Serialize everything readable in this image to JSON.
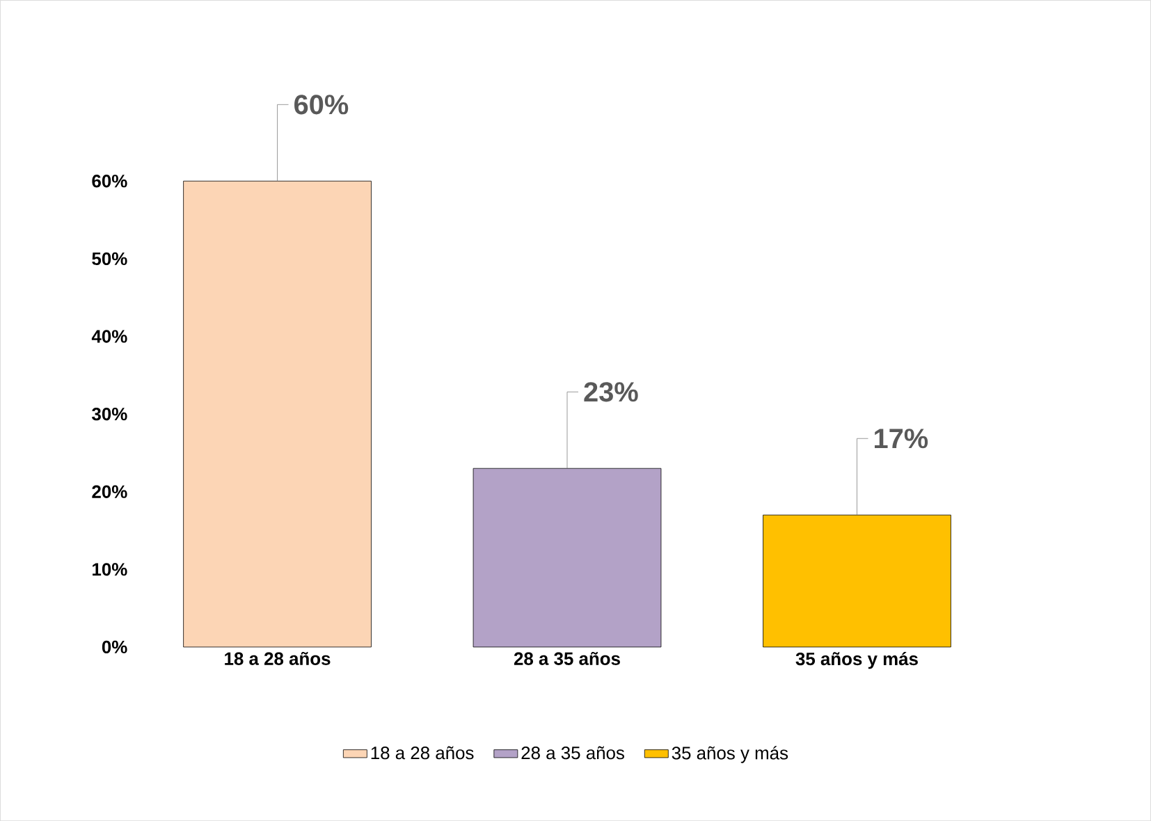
{
  "chart_data": {
    "type": "bar",
    "categories": [
      "18 a 28 años",
      "28 a 35 años",
      "35 años y más"
    ],
    "series": [
      {
        "name": "18 a 28 años",
        "color": "#fcd5b5",
        "values": [
          60,
          null,
          null
        ],
        "value_labels": [
          "60%",
          null,
          null
        ]
      },
      {
        "name": "28 a 35 años",
        "color": "#b3a2c7",
        "values": [
          null,
          23,
          null
        ],
        "value_labels": [
          null,
          "23%",
          null
        ]
      },
      {
        "name": "35 años y más",
        "color": "#ffc000",
        "values": [
          null,
          null,
          17
        ],
        "value_labels": [
          null,
          null,
          "17%"
        ]
      }
    ],
    "ylim": [
      0,
      60
    ],
    "yticks": [
      {
        "value": 0,
        "label": "0%"
      },
      {
        "value": 10,
        "label": "10%"
      },
      {
        "value": 20,
        "label": "20%"
      },
      {
        "value": 30,
        "label": "30%"
      },
      {
        "value": 40,
        "label": "40%"
      },
      {
        "value": 50,
        "label": "50%"
      },
      {
        "value": 60,
        "label": "60%"
      }
    ],
    "legend": "bottom"
  }
}
